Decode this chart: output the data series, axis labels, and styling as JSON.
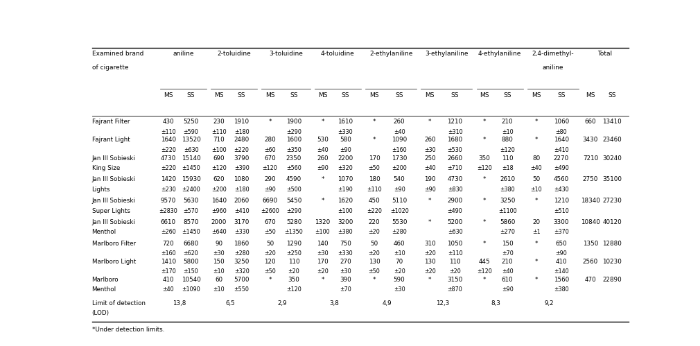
{
  "footnote": "*Under detection limits.",
  "col_groups": [
    {
      "name": "aniline"
    },
    {
      "name": "2-toluidine"
    },
    {
      "name": "3-toluidine"
    },
    {
      "name": "4-toluidine"
    },
    {
      "name": "2-ethylaniline"
    },
    {
      "name": "3-ethylaniline"
    },
    {
      "name": "4-ethylaniline"
    },
    {
      "name": "2,4-dimethyl-\naniline"
    },
    {
      "name": "Total"
    }
  ],
  "rows": [
    {
      "label": "Fajrant Filter",
      "label2": "",
      "values": [
        "430",
        "5250",
        "230",
        "1910",
        "*",
        "1900",
        "*",
        "1610",
        "*",
        "260",
        "*",
        "1210",
        "*",
        "210",
        "*",
        "1060",
        "660",
        "13410"
      ],
      "errors": [
        "±110",
        "±590",
        "±110",
        "±180",
        "",
        "±290",
        "",
        "±330",
        "",
        "±40",
        "",
        "±310",
        "",
        "±10",
        "",
        "±80",
        "",
        ""
      ]
    },
    {
      "label": "Fajrant Light",
      "label2": "",
      "values": [
        "1640",
        "13520",
        "710",
        "2480",
        "280",
        "1600",
        "530",
        "580",
        "*",
        "1090",
        "260",
        "1680",
        "*",
        "880",
        "*",
        "1640",
        "3430",
        "23460"
      ],
      "errors": [
        "±220",
        "±630",
        "±100",
        "±220",
        "±60",
        "±350",
        "±40",
        "±90",
        "",
        "±160",
        "±30",
        "±530",
        "",
        "±120",
        "",
        "±410",
        "",
        ""
      ]
    },
    {
      "label": "Jan III Sobieski",
      "label2": "King Size",
      "values": [
        "4730",
        "15140",
        "690",
        "3790",
        "670",
        "2350",
        "260",
        "2200",
        "170",
        "1730",
        "250",
        "2660",
        "350",
        "110",
        "80",
        "2270",
        "7210",
        "30240"
      ],
      "errors": [
        "±220",
        "±1450",
        "±120",
        "±390",
        "±120",
        "±560",
        "±90",
        "±320",
        "±50",
        "±200",
        "±40",
        "±710",
        "±120",
        "±18",
        "±40",
        "±490",
        "",
        ""
      ]
    },
    {
      "label": "Jan III Sobieski",
      "label2": "Lights",
      "values": [
        "1420",
        "15930",
        "620",
        "1080",
        "290",
        "4590",
        "*",
        "1070",
        "180",
        "540",
        "190",
        "4730",
        "*",
        "2610",
        "50",
        "4560",
        "2750",
        "35100"
      ],
      "errors": [
        "±230",
        "±2400",
        "±200",
        "±180",
        "±90",
        "±500",
        "",
        "±190",
        "±110",
        "±90",
        "±90",
        "±830",
        "",
        "±380",
        "±10",
        "±430",
        "",
        ""
      ]
    },
    {
      "label": "Jan III Sobieski",
      "label2": "Super Lights",
      "values": [
        "9570",
        "5630",
        "1640",
        "2060",
        "6690",
        "5450",
        "*",
        "1620",
        "450",
        "5110",
        "*",
        "2900",
        "*",
        "3250",
        "*",
        "1210",
        "18340",
        "27230"
      ],
      "errors": [
        "±2830",
        "±570",
        "±960",
        "±410",
        "±2600",
        "±290",
        "",
        "±100",
        "±220",
        "±1020",
        "",
        "±490",
        "",
        "±1100",
        "",
        "±510",
        "",
        ""
      ]
    },
    {
      "label": "Jan III Sobieski",
      "label2": "Menthol",
      "values": [
        "6610",
        "8570",
        "2000",
        "3170",
        "670",
        "5280",
        "1320",
        "3200",
        "220",
        "5530",
        "*",
        "5200",
        "*",
        "5860",
        "20",
        "3300",
        "10840",
        "40120"
      ],
      "errors": [
        "±260",
        "±1450",
        "±640",
        "±330",
        "±50",
        "±1350",
        "±100",
        "±380",
        "±20",
        "±280",
        "",
        "±630",
        "",
        "±270",
        "±1",
        "±370",
        "",
        ""
      ]
    },
    {
      "label": "Marlboro Filter",
      "label2": "",
      "values": [
        "720",
        "6680",
        "90",
        "1860",
        "50",
        "1290",
        "140",
        "750",
        "50",
        "460",
        "310",
        "1050",
        "*",
        "150",
        "*",
        "650",
        "1350",
        "12880"
      ],
      "errors": [
        "±160",
        "±620",
        "±30",
        "±280",
        "±20",
        "±250",
        "±30",
        "±330",
        "±20",
        "±10",
        "±20",
        "±110",
        "",
        "±70",
        "",
        "±90",
        "",
        ""
      ]
    },
    {
      "label": "Marlboro Light",
      "label2": "",
      "values": [
        "1410",
        "5800",
        "150",
        "3250",
        "120",
        "110",
        "170",
        "270",
        "130",
        "70",
        "130",
        "110",
        "445",
        "210",
        "*",
        "410",
        "2560",
        "10230"
      ],
      "errors": [
        "±170",
        "±150",
        "±10",
        "±320",
        "±50",
        "±20",
        "±20",
        "±30",
        "±50",
        "±20",
        "±20",
        "±20",
        "±120",
        "±40",
        "",
        "±140",
        "",
        ""
      ]
    },
    {
      "label": "Marlboro",
      "label2": "Menthol",
      "values": [
        "410",
        "10540",
        "60",
        "5700",
        "*",
        "350",
        "*",
        "390",
        "*",
        "590",
        "*",
        "3150",
        "*",
        "610",
        "*",
        "1560",
        "470",
        "22890"
      ],
      "errors": [
        "±40",
        "±1090",
        "±10",
        "±550",
        "",
        "±120",
        "",
        "±70",
        "",
        "±30",
        "",
        "±870",
        "",
        "±90",
        "",
        "±380",
        "",
        ""
      ]
    }
  ],
  "lod_values": [
    "13,8",
    "6,5",
    "2,9",
    "3,8",
    "4,9",
    "12,3",
    "8,3",
    "9,2"
  ]
}
